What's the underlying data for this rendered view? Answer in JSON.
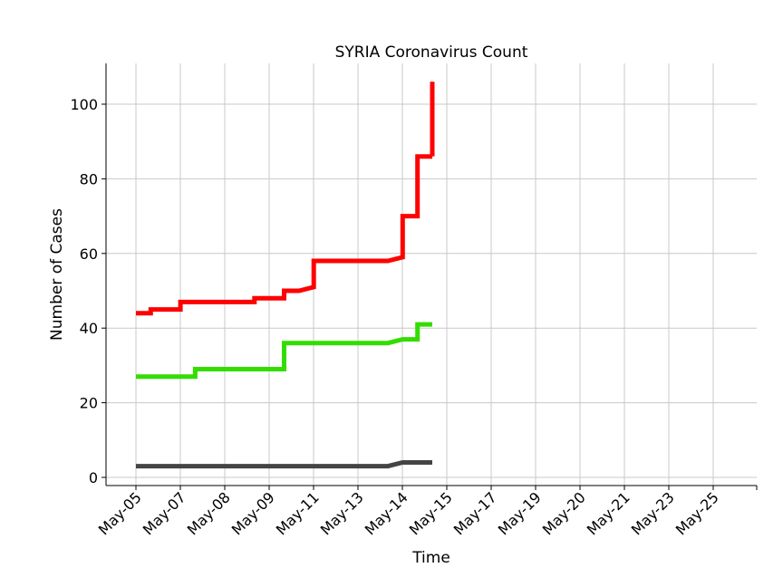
{
  "chart_data": {
    "type": "line",
    "title": "SYRIA Coronavirus Count",
    "xlabel": "Time",
    "ylabel": "Number of Cases",
    "x_tick_labels": [
      "May-05",
      "May-07",
      "May-08",
      "May-09",
      "May-11",
      "May-13",
      "May-14",
      "May-15",
      "May-17",
      "May-19",
      "May-20",
      "May-21",
      "May-23",
      "May-25"
    ],
    "yticks": [
      0,
      20,
      40,
      60,
      80,
      100
    ],
    "ylim": [
      -2,
      111
    ],
    "grid": true,
    "colors": {
      "red": "#ff0000",
      "green": "#33dd00",
      "dark": "#444444"
    },
    "series": [
      {
        "color": "#ff0000",
        "x": [
          0,
          1,
          1,
          3,
          3,
          8,
          8,
          10,
          10,
          11,
          12,
          12,
          17,
          18,
          18,
          19,
          19,
          20
        ],
        "y": [
          44,
          44,
          45,
          45,
          47,
          47,
          48,
          48,
          50,
          50,
          51,
          58,
          58,
          59,
          70,
          70,
          86,
          86
        ]
      },
      {
        "color": "#33dd00",
        "x": [
          0,
          4,
          4,
          10,
          10,
          17,
          18,
          19,
          19,
          20
        ],
        "y": [
          27,
          27,
          29,
          29,
          36,
          36,
          37,
          37,
          41,
          41
        ]
      },
      {
        "color": "#444444",
        "x": [
          0,
          17,
          18,
          20
        ],
        "y": [
          3,
          3,
          4,
          4
        ]
      }
    ],
    "final_jump": {
      "color": "#ff0000",
      "x": 20,
      "y": [
        86,
        106
      ]
    }
  }
}
